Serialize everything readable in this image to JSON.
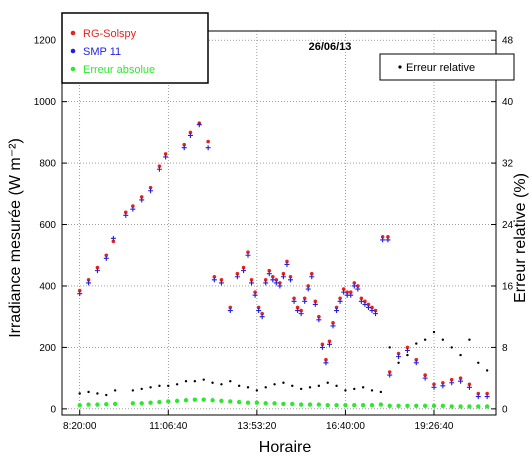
{
  "chart_data": {
    "type": "scatter",
    "title": "26/06/13",
    "xlabel": "Horaire",
    "ylabel": "Irradiance mesurée (W m⁻²)",
    "y2label": "Erreur relative (%)",
    "x_tick_labels": [
      "8:20:00",
      "11:06:40",
      "13:53:20",
      "16:40:00",
      "19:26:40"
    ],
    "x_ticks": [
      30000,
      40000,
      50000,
      60000,
      70000
    ],
    "xlim": [
      28000,
      77000
    ],
    "ylim": [
      -20,
      1230
    ],
    "y_ticks": [
      0,
      200,
      400,
      600,
      800,
      1000,
      1200
    ],
    "y2lim": [
      -0.8,
      49.2
    ],
    "y2_ticks": [
      0,
      8,
      16,
      24,
      32,
      40,
      48
    ],
    "legend": {
      "position": "top-left",
      "entries": [
        {
          "label": "RG-Solspy",
          "color": "#e8231f"
        },
        {
          "label": "SMP 11",
          "color": "#1f1fe0"
        },
        {
          "label": "Erreur absolue",
          "color": "#2ee82e"
        }
      ]
    },
    "legend2": {
      "position": "top-right",
      "entries": [
        {
          "label": "Erreur relative",
          "color": "#000000"
        }
      ]
    },
    "series": [
      {
        "name": "RG-Solspy",
        "color": "#e8231f",
        "axis": "left",
        "x": [
          30000,
          31000,
          32000,
          33000,
          33800,
          35200,
          36000,
          37000,
          38000,
          39000,
          39700,
          41800,
          42500,
          43500,
          44500,
          45200,
          46000,
          47000,
          47800,
          48500,
          49000,
          49400,
          49800,
          50200,
          50600,
          51000,
          51400,
          51800,
          52200,
          52600,
          53000,
          53400,
          53800,
          54200,
          54600,
          55000,
          55400,
          55800,
          56200,
          56600,
          57000,
          57400,
          57800,
          58200,
          58600,
          59000,
          59400,
          59800,
          60200,
          60600,
          61000,
          61400,
          61800,
          62200,
          62600,
          63000,
          63400,
          64200,
          64800,
          65000,
          66000,
          67000,
          68000,
          69000,
          70000,
          71000,
          72000,
          73000,
          74000,
          75000,
          76000
        ],
        "y": [
          385,
          420,
          460,
          500,
          545,
          640,
          660,
          690,
          720,
          790,
          830,
          860,
          900,
          930,
          870,
          430,
          420,
          330,
          440,
          460,
          510,
          420,
          380,
          330,
          310,
          420,
          450,
          430,
          420,
          410,
          440,
          480,
          430,
          360,
          330,
          320,
          360,
          400,
          440,
          350,
          300,
          210,
          160,
          220,
          280,
          330,
          360,
          390,
          380,
          380,
          410,
          400,
          360,
          350,
          340,
          330,
          320,
          560,
          560,
          120,
          180,
          200,
          160,
          110,
          80,
          85,
          95,
          100,
          80,
          50,
          50
        ]
      },
      {
        "name": "SMP 11",
        "color": "#1f1fe0",
        "axis": "left",
        "x": [
          30000,
          31000,
          32000,
          33000,
          33800,
          35200,
          36000,
          37000,
          38000,
          39000,
          39700,
          41800,
          42500,
          43500,
          44500,
          45200,
          46000,
          47000,
          47800,
          48500,
          49000,
          49400,
          49800,
          50200,
          50600,
          51000,
          51400,
          51800,
          52200,
          52600,
          53000,
          53400,
          53800,
          54200,
          54600,
          55000,
          55400,
          55800,
          56200,
          56600,
          57000,
          57400,
          57800,
          58200,
          58600,
          59000,
          59400,
          59800,
          60200,
          60600,
          61000,
          61400,
          61800,
          62200,
          62600,
          63000,
          63400,
          64200,
          64800,
          65000,
          66000,
          67000,
          68000,
          69000,
          70000,
          71000,
          72000,
          73000,
          74000,
          75000,
          76000
        ],
        "y": [
          375,
          410,
          450,
          490,
          555,
          630,
          650,
          680,
          710,
          780,
          820,
          850,
          890,
          925,
          850,
          420,
          410,
          320,
          430,
          450,
          500,
          410,
          370,
          320,
          300,
          410,
          440,
          420,
          410,
          400,
          430,
          470,
          420,
          350,
          320,
          310,
          350,
          390,
          430,
          340,
          290,
          200,
          150,
          210,
          270,
          320,
          350,
          380,
          370,
          370,
          400,
          390,
          350,
          340,
          330,
          320,
          310,
          550,
          550,
          110,
          170,
          190,
          150,
          100,
          70,
          75,
          85,
          90,
          70,
          40,
          40
        ]
      },
      {
        "name": "Erreur absolue",
        "color": "#2ee82e",
        "axis": "left",
        "x": [
          30000,
          31000,
          32000,
          33000,
          34000,
          36000,
          37000,
          38000,
          39000,
          40000,
          41000,
          42000,
          43000,
          44000,
          45000,
          46000,
          47000,
          48000,
          49000,
          50000,
          51000,
          52000,
          53000,
          54000,
          55000,
          56000,
          57000,
          58000,
          59000,
          60000,
          61000,
          62000,
          63000,
          64000,
          65000,
          66000,
          67000,
          68000,
          69000,
          70000,
          71000,
          72000,
          73000,
          74000,
          75000,
          76000
        ],
        "y": [
          12,
          14,
          14,
          15,
          16,
          18,
          18,
          20,
          22,
          24,
          26,
          28,
          30,
          30,
          28,
          26,
          24,
          22,
          20,
          20,
          18,
          18,
          16,
          16,
          14,
          14,
          14,
          12,
          12,
          12,
          12,
          12,
          12,
          14,
          10,
          10,
          10,
          10,
          10,
          10,
          10,
          8,
          8,
          8,
          8,
          8
        ]
      },
      {
        "name": "Erreur relative",
        "color": "#000000",
        "axis": "right",
        "x": [
          30000,
          31000,
          32000,
          33000,
          34000,
          36000,
          37000,
          38000,
          39000,
          40000,
          41000,
          42000,
          43000,
          44000,
          45000,
          46000,
          47000,
          48000,
          49000,
          50000,
          51000,
          52000,
          53000,
          54000,
          55000,
          56000,
          57000,
          58000,
          59000,
          60000,
          61000,
          62000,
          63000,
          64000,
          65000,
          66000,
          67000,
          68000,
          69000,
          70000,
          71000,
          72000,
          73000,
          74000,
          75000,
          76000
        ],
        "y": [
          2.0,
          2.2,
          2.0,
          1.8,
          2.4,
          2.4,
          2.6,
          2.8,
          3.0,
          3.0,
          3.2,
          3.6,
          3.6,
          3.8,
          3.4,
          3.2,
          3.6,
          3.0,
          2.8,
          2.4,
          2.8,
          3.2,
          3.4,
          3.0,
          2.6,
          2.8,
          3.0,
          3.4,
          3.0,
          2.4,
          2.6,
          2.8,
          2.4,
          2.2,
          8.0,
          6.0,
          7.0,
          8.5,
          9.0,
          10.0,
          9.0,
          8.0,
          7.0,
          9.0,
          6.0,
          5.0
        ]
      }
    ]
  }
}
